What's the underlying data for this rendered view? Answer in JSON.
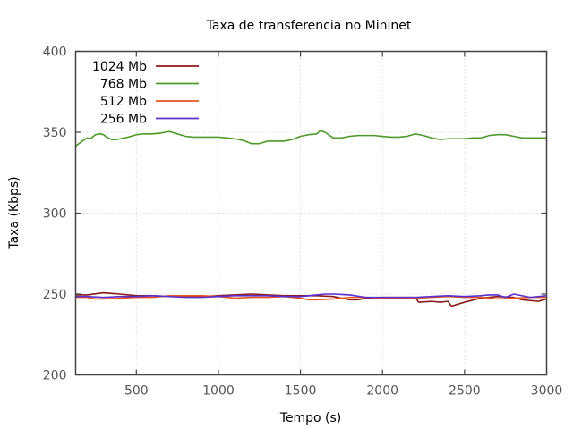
{
  "chart_data": {
    "type": "line",
    "title": "Taxa de transferencia no Mininet",
    "xlabel": "Tempo (s)",
    "ylabel": "Taxa (Kbps)",
    "xlim": [
      130,
      3000
    ],
    "ylim": [
      200,
      400
    ],
    "xticks": [
      500,
      1000,
      1500,
      2000,
      2500,
      3000
    ],
    "yticks": [
      200,
      250,
      300,
      350,
      400
    ],
    "grid": true,
    "legend_position": "top-left",
    "series": [
      {
        "name": "1024 Mb",
        "color": "#8b1a1a",
        "x": [
          130,
          200,
          300,
          400,
          500,
          600,
          700,
          800,
          900,
          1000,
          1100,
          1200,
          1300,
          1400,
          1500,
          1600,
          1700,
          1800,
          1850,
          1900,
          2000,
          2100,
          2200,
          2220,
          2300,
          2350,
          2400,
          2420,
          2500,
          2600,
          2700,
          2800,
          2850,
          2900,
          2950,
          3000
        ],
        "values": [
          249.5,
          249.5,
          250.8,
          250,
          249,
          249,
          248.5,
          248.5,
          248.5,
          249,
          249.5,
          250,
          249.5,
          249,
          249,
          249,
          248.5,
          246.5,
          246.5,
          247.5,
          248,
          248,
          248,
          245,
          245.5,
          245,
          245.5,
          242.5,
          245,
          247.5,
          248.5,
          248,
          246.5,
          246,
          245.5,
          247
        ]
      },
      {
        "name": "768 Mb",
        "color": "#4e9a2a",
        "x": [
          130,
          170,
          200,
          220,
          250,
          280,
          300,
          320,
          350,
          380,
          400,
          450,
          500,
          550,
          600,
          650,
          700,
          750,
          800,
          850,
          900,
          950,
          1000,
          1050,
          1100,
          1150,
          1200,
          1250,
          1300,
          1350,
          1400,
          1450,
          1500,
          1550,
          1600,
          1620,
          1650,
          1700,
          1750,
          1800,
          1850,
          1900,
          1950,
          2000,
          2050,
          2100,
          2150,
          2200,
          2250,
          2300,
          2350,
          2400,
          2450,
          2500,
          2550,
          2600,
          2650,
          2700,
          2750,
          2800,
          2850,
          2900,
          2950,
          3000
        ],
        "values": [
          341.5,
          344.5,
          346.5,
          346,
          348.5,
          349,
          348.5,
          347,
          345.5,
          345.5,
          346,
          347,
          348.5,
          349,
          349,
          349.5,
          350.5,
          349,
          347.5,
          347,
          347,
          347,
          347,
          346.5,
          346,
          345,
          343,
          343,
          344.5,
          344.5,
          344.5,
          345.5,
          347.5,
          348.5,
          349,
          351,
          350,
          346.5,
          346.5,
          347.5,
          348,
          348,
          348,
          347.5,
          347,
          347,
          347.5,
          349,
          348,
          346.5,
          345.5,
          346,
          346,
          346,
          346.5,
          346.5,
          348,
          348.5,
          348.5,
          347.5,
          346.5,
          346.5,
          346.5,
          346.5
        ]
      },
      {
        "name": "512 Mb",
        "color": "#e8541c",
        "x": [
          130,
          200,
          250,
          300,
          400,
          500,
          600,
          700,
          800,
          900,
          1000,
          1050,
          1100,
          1200,
          1300,
          1400,
          1500,
          1550,
          1600,
          1700,
          1800,
          1900,
          2000,
          2100,
          2200,
          2300,
          2400,
          2500,
          2600,
          2700,
          2800,
          2900,
          3000
        ],
        "values": [
          248,
          248,
          247,
          247,
          247.5,
          248,
          248,
          249,
          249,
          249,
          248.5,
          248,
          247.5,
          248,
          248,
          248.5,
          247.5,
          246.5,
          246.5,
          247,
          248,
          248,
          247.5,
          247.5,
          247.5,
          248,
          248.5,
          248,
          248,
          247,
          247.5,
          248,
          248
        ]
      },
      {
        "name": "256 Mb",
        "color": "#5a2fd0",
        "x": [
          130,
          200,
          300,
          400,
          500,
          600,
          700,
          800,
          900,
          1000,
          1100,
          1200,
          1300,
          1400,
          1500,
          1600,
          1650,
          1700,
          1800,
          1900,
          2000,
          2100,
          2200,
          2300,
          2400,
          2500,
          2600,
          2650,
          2700,
          2750,
          2800,
          2900,
          3000
        ],
        "values": [
          248.5,
          248.5,
          248,
          248.5,
          248.5,
          249,
          248.5,
          248,
          248,
          248.5,
          249,
          249,
          249,
          248.5,
          248.5,
          249.5,
          250,
          250,
          249.5,
          248,
          248,
          248,
          248,
          248.5,
          249,
          248.5,
          249,
          249.5,
          249.5,
          248,
          250,
          248,
          249
        ]
      }
    ]
  }
}
